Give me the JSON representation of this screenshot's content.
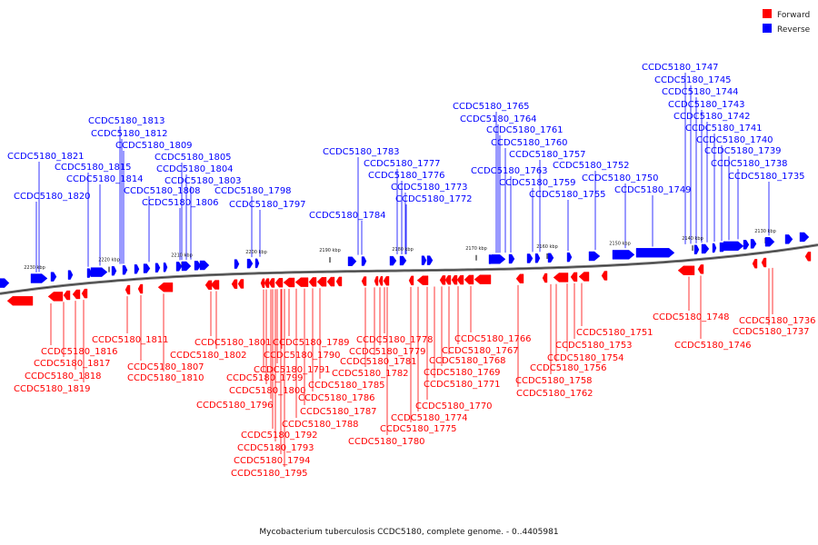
{
  "caption": "Mycobacterium tuberculosis CCDC5180, complete genome. - 0..4405981",
  "legend": [
    {
      "label": "Forward",
      "color": "#ff0000"
    },
    {
      "label": "Reverse",
      "color": "#0000ff"
    }
  ],
  "colors": {
    "forward": "#ff0000",
    "reverse": "#0000ff",
    "backbone": "#808080"
  },
  "ticks": [
    "2230 kbp",
    "2220 kbp",
    "2210 kbp",
    "2200 kbp",
    "2190 kbp",
    "2180 kbp",
    "2170 kbp",
    "2160 kbp",
    "2150 kbp",
    "2140 kbp",
    "2130 kbp"
  ],
  "reverse_genes": [
    "CCDC5180_1821",
    "CCDC5180_1820",
    "CCDC5180_1815",
    "CCDC5180_1814",
    "CCDC5180_1813",
    "CCDC5180_1812",
    "CCDC5180_1809",
    "CCDC5180_1808",
    "CCDC5180_1806",
    "CCDC5180_1805",
    "CCDC5180_1804",
    "CCDC5180_1803",
    "CCDC5180_1798",
    "CCDC5180_1797",
    "CCDC5180_1784",
    "CCDC5180_1783",
    "CCDC5180_1777",
    "CCDC5180_1776",
    "CCDC5180_1773",
    "CCDC5180_1772",
    "CCDC5180_1765",
    "CCDC5180_1764",
    "CCDC5180_1763",
    "CCDC5180_1761",
    "CCDC5180_1760",
    "CCDC5180_1759",
    "CCDC5180_1757",
    "CCDC5180_1755",
    "CCDC5180_1752",
    "CCDC5180_1750",
    "CCDC5180_1749",
    "CCDC5180_1747",
    "CCDC5180_1745",
    "CCDC5180_1744",
    "CCDC5180_1743",
    "CCDC5180_1742",
    "CCDC5180_1741",
    "CCDC5180_1740",
    "CCDC5180_1739",
    "CCDC5180_1738",
    "CCDC5180_1735"
  ],
  "forward_genes": [
    "CCDC5180_1816",
    "CCDC5180_1817",
    "CCDC5180_1818",
    "CCDC5180_1819",
    "CCDC5180_1811",
    "CCDC5180_1807",
    "CCDC5180_1810",
    "CCDC5180_1801",
    "CCDC5180_1802",
    "CCDC5180_1799",
    "CCDC5180_1800",
    "CCDC5180_1796",
    "CCDC5180_1791",
    "CCDC5180_1790",
    "CCDC5180_1789",
    "CCDC5180_1792",
    "CCDC5180_1793",
    "CCDC5180_1794",
    "CCDC5180_1795",
    "CCDC5180_1788",
    "CCDC5180_1787",
    "CCDC5180_1786",
    "CCDC5180_1785",
    "CCDC5180_1782",
    "CCDC5180_1781",
    "CCDC5180_1779",
    "CCDC5180_1778",
    "CCDC5180_1780",
    "CCDC5180_1775",
    "CCDC5180_1774",
    "CCDC5180_1770",
    "CCDC5180_1771",
    "CCDC5180_1769",
    "CCDC5180_1768",
    "CCDC5180_1767",
    "CCDC5180_1766",
    "CCDC5180_1762",
    "CCDC5180_1758",
    "CCDC5180_1756",
    "CCDC5180_1754",
    "CCDC5180_1753",
    "CCDC5180_1751",
    "CCDC5180_1748",
    "CCDC5180_1746",
    "CCDC5180_1736",
    "CCDC5180_1737"
  ]
}
